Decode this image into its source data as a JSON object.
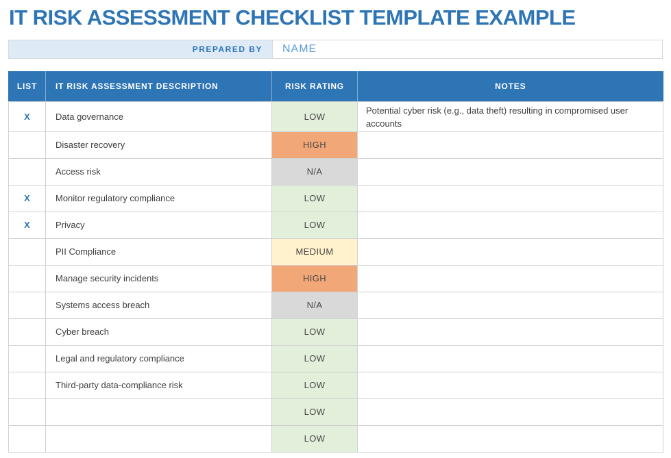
{
  "page": {
    "title": "IT RISK ASSESSMENT CHECKLIST TEMPLATE EXAMPLE"
  },
  "prepared_by": {
    "label": "PREPARED BY",
    "value": "NAME"
  },
  "table": {
    "headers": {
      "list": "LIST",
      "description": "IT RISK ASSESSMENT DESCRIPTION",
      "rating": "RISK RATING",
      "notes": "NOTES"
    },
    "rows": [
      {
        "list": "X",
        "description": "Data governance",
        "rating": "LOW",
        "notes": "Potential cyber risk (e.g., data theft) resulting in compromised user accounts"
      },
      {
        "list": "",
        "description": "Disaster recovery",
        "rating": "HIGH",
        "notes": ""
      },
      {
        "list": "",
        "description": "Access risk",
        "rating": "N/A",
        "notes": ""
      },
      {
        "list": "X",
        "description": "Monitor regulatory compliance",
        "rating": "LOW",
        "notes": ""
      },
      {
        "list": "X",
        "description": "Privacy",
        "rating": "LOW",
        "notes": ""
      },
      {
        "list": "",
        "description": "PII Compliance",
        "rating": "MEDIUM",
        "notes": ""
      },
      {
        "list": "",
        "description": "Manage security incidents",
        "rating": "HIGH",
        "notes": ""
      },
      {
        "list": "",
        "description": "Systems access breach",
        "rating": "N/A",
        "notes": ""
      },
      {
        "list": "",
        "description": "Cyber breach",
        "rating": "LOW",
        "notes": ""
      },
      {
        "list": "",
        "description": "Legal and regulatory compliance",
        "rating": "LOW",
        "notes": ""
      },
      {
        "list": "",
        "description": "Third-party data-compliance risk",
        "rating": "LOW",
        "notes": ""
      },
      {
        "list": "",
        "description": "",
        "rating": "LOW",
        "notes": ""
      },
      {
        "list": "",
        "description": "",
        "rating": "LOW",
        "notes": ""
      }
    ]
  },
  "colors": {
    "accent_blue": "#2E75B6",
    "prepared_label_bg": "#DEEBF7",
    "rating_colors": {
      "LOW": "#E2EFDA",
      "MEDIUM": "#FFF2CC",
      "HIGH": "#F2A778",
      "N/A": "#D9D9D9"
    }
  }
}
